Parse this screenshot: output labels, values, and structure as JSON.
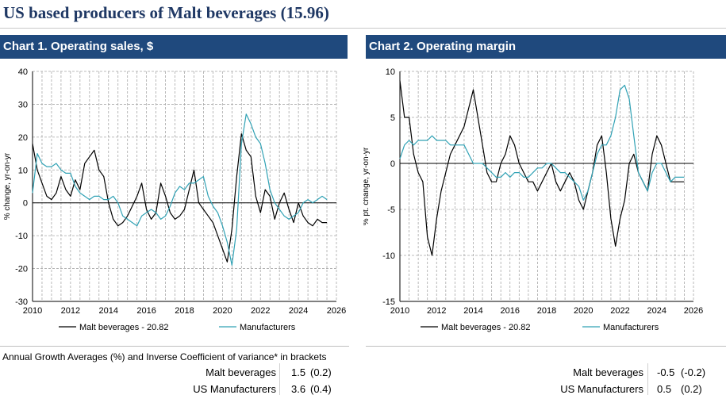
{
  "page_title": "US based producers of Malt beverages (15.96)",
  "stats": {
    "heading": "Annual Growth Averages (%) and Inverse Coefficient of variance* in brackets",
    "rows": [
      {
        "label": "Malt beverages",
        "c1": "1.5",
        "c1b": "(0.2)",
        "c2": "-0.5",
        "c2b": "(-0.2)"
      },
      {
        "label": "US Manufacturers",
        "c1": "3.6",
        "c1b": "(0.4)",
        "c2": "0.5",
        "c2b": "(0.2)"
      }
    ]
  },
  "colors": {
    "header_bg": "#1f497d",
    "title": "#1f3864",
    "malt": "#000000",
    "manufacturers": "#31a2b5"
  },
  "chart_data": [
    {
      "type": "line",
      "title": "Chart 1. Operating sales, $",
      "ylabel": "% change, yr-on-yr",
      "xlabel": "",
      "xlim": [
        2010,
        2026
      ],
      "ylim": [
        -30,
        40
      ],
      "xticks": [
        "2010",
        "2012",
        "2014",
        "2016",
        "2018",
        "2020",
        "2022",
        "2024",
        "2026"
      ],
      "yticks": [
        "40",
        "30",
        "20",
        "10",
        "0",
        "-10",
        "-20",
        "-30"
      ],
      "grid": true,
      "legend": "bottom",
      "series": [
        {
          "name": "Malt beverages - 20.82",
          "x": [
            2010.0,
            2010.25,
            2010.5,
            2010.75,
            2011.0,
            2011.25,
            2011.5,
            2011.75,
            2012.0,
            2012.25,
            2012.5,
            2012.75,
            2013.0,
            2013.25,
            2013.5,
            2013.75,
            2014.0,
            2014.25,
            2014.5,
            2014.75,
            2015.0,
            2015.25,
            2015.5,
            2015.75,
            2016.0,
            2016.25,
            2016.5,
            2016.75,
            2017.0,
            2017.25,
            2017.5,
            2017.75,
            2018.0,
            2018.25,
            2018.5,
            2018.75,
            2019.0,
            2019.25,
            2019.5,
            2019.75,
            2020.0,
            2020.25,
            2020.5,
            2020.75,
            2021.0,
            2021.25,
            2021.5,
            2021.75,
            2022.0,
            2022.25,
            2022.5,
            2022.75,
            2023.0,
            2023.25,
            2023.5,
            2023.75,
            2024.0,
            2024.25,
            2024.5,
            2024.75,
            2025.0,
            2025.25,
            2025.5
          ],
          "y": [
            18,
            10,
            6,
            2,
            1,
            3,
            8,
            4,
            2,
            7,
            4,
            12,
            14,
            16,
            10,
            8,
            0,
            -5,
            -7,
            -6,
            -4,
            -1,
            2,
            6,
            -2,
            -5,
            -3,
            6,
            2,
            -3,
            -5,
            -4,
            -2,
            4,
            10,
            0,
            -2,
            -4,
            -6,
            -10,
            -14,
            -18,
            -8,
            8,
            21,
            16,
            14,
            2,
            -3,
            4,
            2,
            -5,
            0,
            3,
            -2,
            -6,
            0,
            -4,
            -6,
            -7,
            -5,
            -6,
            -6
          ]
        },
        {
          "name": "Manufacturers",
          "x": [
            2010.0,
            2010.25,
            2010.5,
            2010.75,
            2011.0,
            2011.25,
            2011.5,
            2011.75,
            2012.0,
            2012.25,
            2012.5,
            2012.75,
            2013.0,
            2013.25,
            2013.5,
            2013.75,
            2014.0,
            2014.25,
            2014.5,
            2014.75,
            2015.0,
            2015.25,
            2015.5,
            2015.75,
            2016.0,
            2016.25,
            2016.5,
            2016.75,
            2017.0,
            2017.25,
            2017.5,
            2017.75,
            2018.0,
            2018.25,
            2018.5,
            2018.75,
            2019.0,
            2019.25,
            2019.5,
            2019.75,
            2020.0,
            2020.25,
            2020.5,
            2020.75,
            2021.0,
            2021.25,
            2021.5,
            2021.75,
            2022.0,
            2022.25,
            2022.5,
            2022.75,
            2023.0,
            2023.25,
            2023.5,
            2023.75,
            2024.0,
            2024.25,
            2024.5,
            2024.75,
            2025.0,
            2025.25,
            2025.5
          ],
          "y": [
            3,
            15,
            12,
            11,
            11,
            12,
            10,
            9,
            9,
            5,
            3,
            2,
            1,
            2,
            2,
            1,
            1,
            2,
            0,
            -4,
            -5,
            -6,
            -7,
            -4,
            -3,
            -2,
            -3,
            -5,
            -4,
            -1,
            3,
            5,
            4,
            6,
            6,
            7,
            8,
            2,
            -1,
            -3,
            -7,
            -12,
            -19,
            -8,
            18,
            27,
            24,
            20,
            18,
            12,
            4,
            0,
            -2,
            -4,
            -5,
            -4,
            -3,
            0,
            1,
            0,
            1,
            2,
            1
          ]
        }
      ]
    },
    {
      "type": "line",
      "title": "Chart 2. Operating margin",
      "ylabel": "% pt. change, yr-on-yr",
      "xlabel": "",
      "xlim": [
        2010,
        2026
      ],
      "ylim": [
        -15,
        10
      ],
      "xticks": [
        "2010",
        "2012",
        "2014",
        "2016",
        "2018",
        "2020",
        "2022",
        "2024",
        "2026"
      ],
      "yticks": [
        "10",
        "5",
        "0",
        "-5",
        "-10",
        "-15"
      ],
      "grid": true,
      "legend": "bottom",
      "series": [
        {
          "name": "Malt beverages - 20.82",
          "x": [
            2010.0,
            2010.25,
            2010.5,
            2010.75,
            2011.0,
            2011.25,
            2011.5,
            2011.75,
            2012.0,
            2012.25,
            2012.5,
            2012.75,
            2013.0,
            2013.25,
            2013.5,
            2013.75,
            2014.0,
            2014.25,
            2014.5,
            2014.75,
            2015.0,
            2015.25,
            2015.5,
            2015.75,
            2016.0,
            2016.25,
            2016.5,
            2016.75,
            2017.0,
            2017.25,
            2017.5,
            2017.75,
            2018.0,
            2018.25,
            2018.5,
            2018.75,
            2019.0,
            2019.25,
            2019.5,
            2019.75,
            2020.0,
            2020.25,
            2020.5,
            2020.75,
            2021.0,
            2021.25,
            2021.5,
            2021.75,
            2022.0,
            2022.25,
            2022.5,
            2022.75,
            2023.0,
            2023.25,
            2023.5,
            2023.75,
            2024.0,
            2024.25,
            2024.5,
            2024.75,
            2025.0,
            2025.25,
            2025.5
          ],
          "y": [
            9,
            5,
            5,
            1,
            -1,
            -2,
            -8,
            -10,
            -6,
            -3,
            -1,
            1,
            2,
            3,
            4,
            6,
            8,
            5,
            2,
            -1,
            -2,
            -2,
            0,
            1,
            3,
            2,
            0,
            -1,
            -2,
            -2,
            -3,
            -2,
            -1,
            0,
            -2,
            -3,
            -2,
            -1,
            -2,
            -4,
            -5,
            -3,
            -1,
            2,
            3,
            -1,
            -6,
            -9,
            -6,
            -4,
            0,
            1,
            -1,
            -2,
            -3,
            1,
            3,
            2,
            0,
            -2,
            -2,
            -2,
            -2
          ]
        },
        {
          "name": "Manufacturers",
          "x": [
            2010.0,
            2010.25,
            2010.5,
            2010.75,
            2011.0,
            2011.25,
            2011.5,
            2011.75,
            2012.0,
            2012.25,
            2012.5,
            2012.75,
            2013.0,
            2013.25,
            2013.5,
            2013.75,
            2014.0,
            2014.25,
            2014.5,
            2014.75,
            2015.0,
            2015.25,
            2015.5,
            2015.75,
            2016.0,
            2016.25,
            2016.5,
            2016.75,
            2017.0,
            2017.25,
            2017.5,
            2017.75,
            2018.0,
            2018.25,
            2018.5,
            2018.75,
            2019.0,
            2019.25,
            2019.5,
            2019.75,
            2020.0,
            2020.25,
            2020.5,
            2020.75,
            2021.0,
            2021.25,
            2021.5,
            2021.75,
            2022.0,
            2022.25,
            2022.5,
            2022.75,
            2023.0,
            2023.25,
            2023.5,
            2023.75,
            2024.0,
            2024.25,
            2024.5,
            2024.75,
            2025.0,
            2025.25,
            2025.5
          ],
          "y": [
            0.5,
            2,
            2.5,
            2,
            2.5,
            2.5,
            2.5,
            3,
            2.5,
            2.5,
            2.5,
            2,
            2,
            2,
            2,
            1,
            0,
            0,
            0,
            -0.5,
            -1,
            -1.5,
            -1.5,
            -1,
            -1.5,
            -1,
            -1,
            -1.5,
            -1.5,
            -1,
            -0.5,
            -0.5,
            0,
            0,
            -0.5,
            -1,
            -1,
            -1.5,
            -2,
            -2.5,
            -4,
            -3,
            -1,
            1,
            2,
            2,
            3,
            5,
            8,
            8.5,
            7,
            3,
            -1,
            -2,
            -3,
            -1,
            0,
            0,
            -1,
            -2,
            -1.5,
            -1.5,
            -1.5
          ]
        }
      ]
    }
  ]
}
